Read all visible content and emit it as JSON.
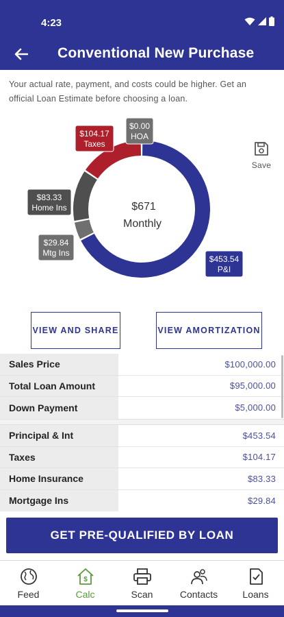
{
  "status_bar": {
    "time": "4:23"
  },
  "header": {
    "title": "Conventional New Purchase"
  },
  "disclaimer": "Your actual rate, payment, and costs could be higher. Get an official Loan Estimate before choosing a loan.",
  "chart_data": {
    "type": "pie",
    "center_value": "$671",
    "center_label": "Monthly",
    "slices": [
      {
        "name": "P&I",
        "value": 453.54,
        "label": "$453.54",
        "color": "#2d3494"
      },
      {
        "name": "Mtg Ins",
        "value": 29.84,
        "label": "$29.84",
        "color": "#6f6f6f"
      },
      {
        "name": "Home Ins",
        "value": 83.33,
        "label": "$83.33",
        "color": "#4f4f4f"
      },
      {
        "name": "Taxes",
        "value": 104.17,
        "label": "$104.17",
        "color": "#ad1f2b"
      },
      {
        "name": "HOA",
        "value": 0.0,
        "label": "$0.00",
        "color": "#707070"
      }
    ]
  },
  "save": {
    "label": "Save"
  },
  "buttons": {
    "view_share": "VIEW AND SHARE",
    "view_amortization": "VIEW AMORTIZATION",
    "cta": "GET PRE-QUALIFIED BY LOAN"
  },
  "loan_table": [
    {
      "label": "Sales Price",
      "value": "$100,000.00"
    },
    {
      "label": "Total Loan Amount",
      "value": "$95,000.00"
    },
    {
      "label": "Down Payment",
      "value": "$5,000.00"
    }
  ],
  "payment_table": [
    {
      "label": "Principal & Int",
      "value": "$453.54"
    },
    {
      "label": "Taxes",
      "value": "$104.17"
    },
    {
      "label": "Home Insurance",
      "value": "$83.33"
    },
    {
      "label": "Mortgage Ins",
      "value": "$29.84"
    }
  ],
  "nav": [
    {
      "label": "Feed",
      "icon": "globe-icon"
    },
    {
      "label": "Calc",
      "icon": "house-dollar-icon",
      "active": true
    },
    {
      "label": "Scan",
      "icon": "printer-icon"
    },
    {
      "label": "Contacts",
      "icon": "contacts-icon"
    },
    {
      "label": "Loans",
      "icon": "document-check-icon"
    }
  ],
  "colors": {
    "primary": "#2d3494",
    "taxes": "#ad1f2b",
    "active_nav": "#5a9a3a"
  }
}
